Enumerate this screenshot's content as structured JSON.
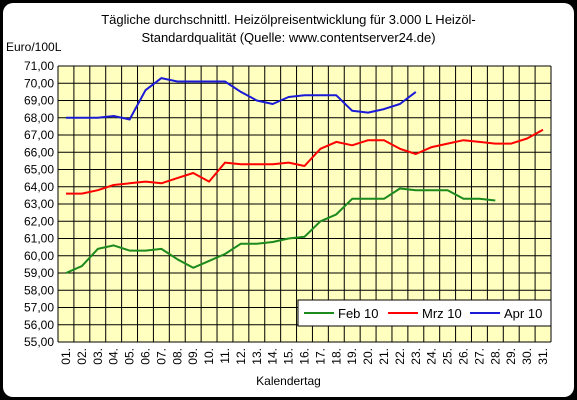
{
  "chart_data": {
    "type": "line",
    "title": "Tägliche durchschnittl. Heizölpreisentwicklung für 3.000 L Heizöl-",
    "subtitle": "Standardqualität (Quelle: www.contentserver24.de)",
    "ylabel": "Euro/100L",
    "xlabel": "Kalendertag",
    "ylim": [
      55,
      71
    ],
    "yticks": [
      "55,00",
      "56,00",
      "57,00",
      "58,00",
      "59,00",
      "60,00",
      "61,00",
      "62,00",
      "63,00",
      "64,00",
      "65,00",
      "66,00",
      "67,00",
      "68,00",
      "69,00",
      "70,00",
      "71,00"
    ],
    "categories": [
      "01.",
      "02.",
      "03.",
      "04.",
      "05.",
      "06.",
      "07.",
      "08.",
      "09.",
      "10.",
      "11.",
      "12.",
      "13.",
      "14.",
      "15.",
      "16.",
      "17.",
      "18.",
      "19.",
      "20.",
      "21.",
      "22.",
      "23.",
      "24.",
      "25.",
      "26.",
      "27.",
      "28.",
      "29.",
      "30.",
      "31."
    ],
    "grid": true,
    "legend": "bottom-right",
    "series": [
      {
        "name": "Feb 10",
        "color": "#1c8a1c",
        "values": [
          59.0,
          59.4,
          60.4,
          60.6,
          60.3,
          60.3,
          60.4,
          59.8,
          59.3,
          59.7,
          60.1,
          60.7,
          60.7,
          60.8,
          61.0,
          61.1,
          62.0,
          62.4,
          63.3,
          63.3,
          63.3,
          63.9,
          63.8,
          63.8,
          63.8,
          63.3,
          63.3,
          63.2,
          null,
          null,
          null
        ]
      },
      {
        "name": "Mrz 10",
        "color": "#ff0000",
        "values": [
          63.6,
          63.6,
          63.8,
          64.1,
          64.2,
          64.3,
          64.2,
          64.5,
          64.8,
          64.3,
          65.4,
          65.3,
          65.3,
          65.3,
          65.4,
          65.2,
          66.2,
          66.6,
          66.4,
          66.7,
          66.7,
          66.2,
          65.9,
          66.3,
          66.5,
          66.7,
          66.6,
          66.5,
          66.5,
          66.8,
          67.3
        ]
      },
      {
        "name": "Apr 10",
        "color": "#1a1ad6",
        "values": [
          68.0,
          68.0,
          68.0,
          68.1,
          67.9,
          69.6,
          70.3,
          70.1,
          70.1,
          70.1,
          70.1,
          69.5,
          69.0,
          68.8,
          69.2,
          69.3,
          69.3,
          69.3,
          68.4,
          68.3,
          68.5,
          68.8,
          69.5,
          null,
          null,
          null,
          null,
          null,
          null,
          null,
          null
        ]
      }
    ]
  }
}
